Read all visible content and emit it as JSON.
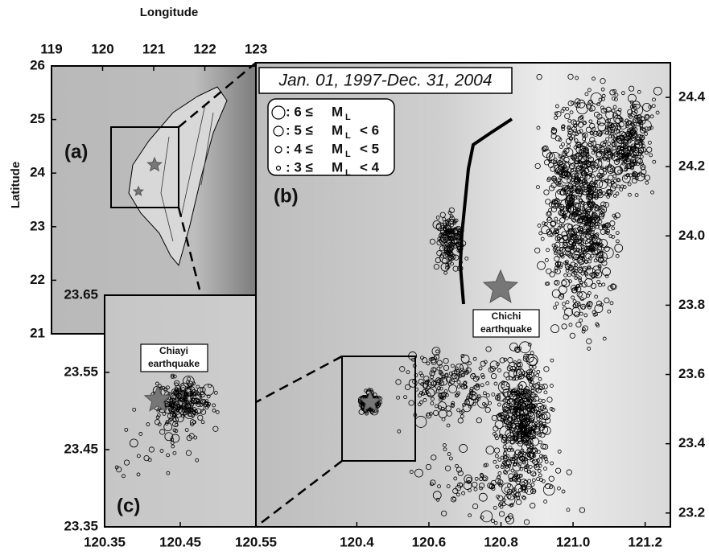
{
  "panel_a": {
    "label": "(a)",
    "x_axis_title": "Longitude",
    "y_axis_title": "Latitude",
    "xlim": [
      119,
      123
    ],
    "ylim": [
      21,
      26
    ],
    "xticks": [
      119,
      120,
      121,
      122,
      123
    ],
    "yticks": [
      21,
      22,
      23,
      24,
      25,
      26
    ]
  },
  "panel_b": {
    "label": "(b)",
    "period": "Jan. 01, 1997-Dec. 31, 2004",
    "xlim": [
      120.12,
      121.27
    ],
    "ylim": [
      23.16,
      24.5
    ],
    "xticks": [
      120.4,
      120.6,
      120.8,
      {
        "value": 121,
        "label": "121.0"
      },
      121.2
    ],
    "yticks": [
      23.2,
      23.4,
      23.6,
      23.8,
      {
        "value": 24,
        "label": "24.0"
      },
      24.2,
      24.4
    ],
    "annotation": [
      "Chichi",
      "earthquake"
    ],
    "legend": [
      {
        "lead": ": 6 ≤",
        "symbol": "M",
        "sub": "L"
      },
      {
        "lead": ": 5 ≤",
        "symbol": "M",
        "sub": "L",
        "tail": "<  6"
      },
      {
        "lead": ": 4 ≤",
        "symbol": "M",
        "sub": "L",
        "tail": "<  5"
      },
      {
        "lead": ": 3 ≤",
        "symbol": "M",
        "sub": "L",
        "tail": "<  4"
      }
    ]
  },
  "panel_c": {
    "label": "(c)",
    "xlim": [
      120.35,
      120.55
    ],
    "ylim": [
      23.35,
      23.65
    ],
    "xticks": [
      120.35,
      120.45,
      120.55
    ],
    "yticks": [
      23.35,
      23.45,
      23.55,
      23.65
    ],
    "annotation": [
      "Chiayi",
      "earthquake"
    ]
  }
}
